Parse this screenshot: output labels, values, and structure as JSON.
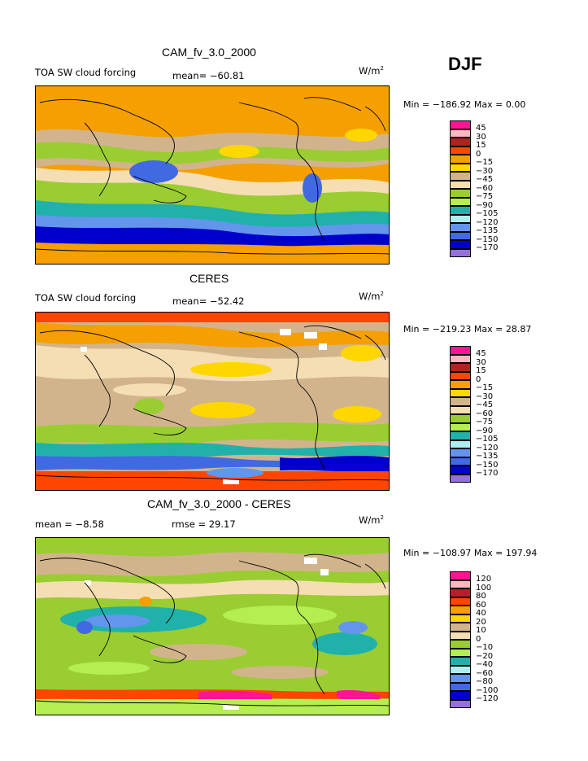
{
  "season": "DJF",
  "panels": [
    {
      "title": "CAM_fv_3.0_2000",
      "left_label": "TOA SW cloud forcing",
      "mid_label": "mean= −60.81",
      "units": "W/m",
      "units_sup": "2",
      "minmax": "Min = −186.92 Max =    0.00",
      "levels": [
        "45",
        "30",
        "15",
        "0",
        "−15",
        "−30",
        "−45",
        "−60",
        "−75",
        "−90",
        "−105",
        "−120",
        "−135",
        "−150",
        "−170"
      ]
    },
    {
      "title": "CERES",
      "left_label": "TOA SW cloud forcing",
      "mid_label": "mean= −52.42",
      "units": "W/m",
      "units_sup": "2",
      "minmax": "Min = −219.23 Max =  28.87",
      "levels": [
        "45",
        "30",
        "15",
        "0",
        "−15",
        "−30",
        "−45",
        "−60",
        "−75",
        "−90",
        "−105",
        "−120",
        "−135",
        "−150",
        "−170"
      ]
    },
    {
      "title": "CAM_fv_3.0_2000 - CERES",
      "left_label": "mean =  −8.58",
      "mid_label": "rmse =  29.17",
      "units": "W/m",
      "units_sup": "2",
      "minmax": "Min = −108.97 Max = 197.94",
      "levels": [
        "120",
        "100",
        "80",
        "60",
        "40",
        "20",
        "10",
        "0",
        "−10",
        "−20",
        "−40",
        "−60",
        "−80",
        "−100",
        "−120"
      ]
    }
  ],
  "palette": [
    "#ff1493",
    "#ffb6c1",
    "#b22222",
    "#ff4500",
    "#f59f00",
    "#ffd700",
    "#d2b48c",
    "#f5deb3",
    "#9acd32",
    "#b4ee50",
    "#20b2aa",
    "#afeeee",
    "#6495ed",
    "#4169e1",
    "#0000cd",
    "#9370db"
  ]
}
